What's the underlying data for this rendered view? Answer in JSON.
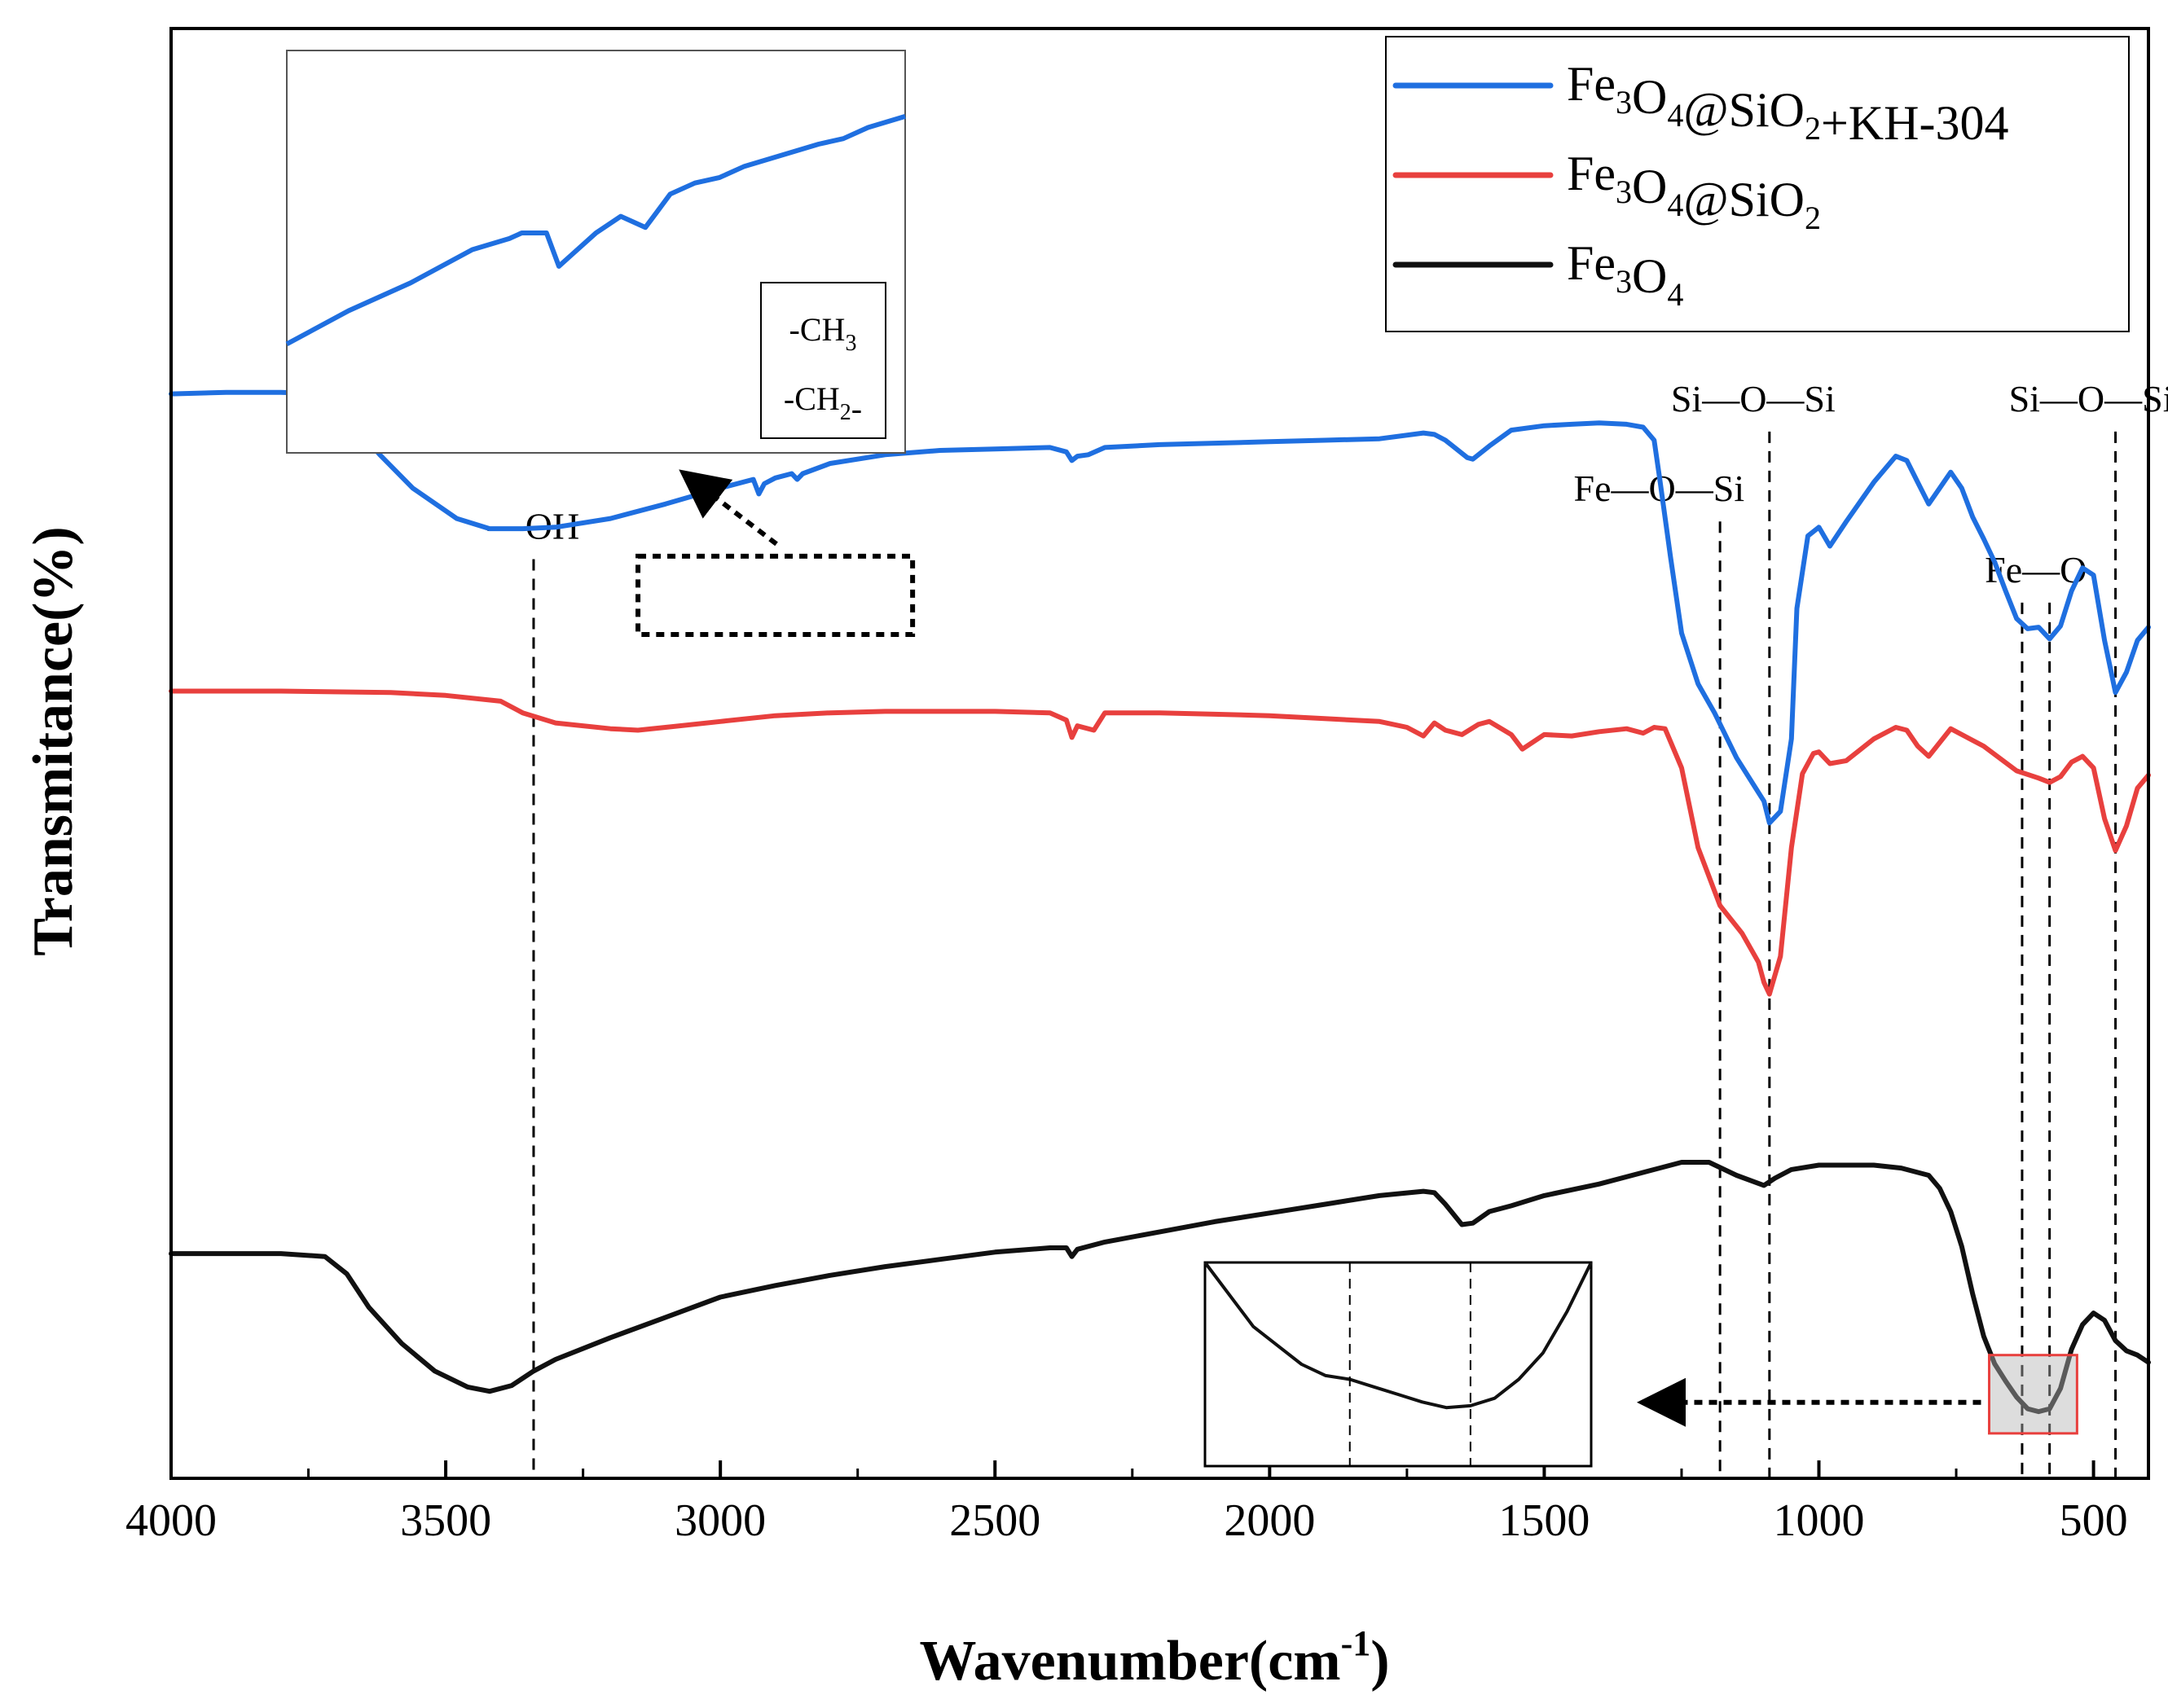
{
  "chart_data": {
    "type": "line",
    "xlabel": "Wavenumber(cm",
    "xlabel_sup": "-1",
    "xlabel_close": ")",
    "ylabel": "Transmitance(%)",
    "xlim": [
      4000,
      400
    ],
    "ylim": [
      0,
      100
    ],
    "x_ticks": [
      4000,
      3500,
      3000,
      2500,
      2000,
      1500,
      1000,
      500
    ],
    "x_tick_labels": [
      "4000",
      "3500",
      "3000",
      "2500",
      "2000",
      "1500",
      "1000",
      "500"
    ],
    "y_ticks_shown": false,
    "legend_position": "top-right",
    "series": [
      {
        "name": "Fe3O4@SiO2+KH-304",
        "legend": [
          [
            "Fe",
            ""
          ],
          [
            "3",
            "sub"
          ],
          [
            "O",
            ""
          ],
          [
            "4",
            "sub"
          ],
          [
            "@SiO",
            ""
          ],
          [
            "2",
            "sub"
          ],
          [
            "+KH-304",
            ""
          ]
        ],
        "color": "#1f6fe0",
        "x": [
          4000,
          3900,
          3800,
          3720,
          3680,
          3620,
          3560,
          3480,
          3420,
          3360,
          3300,
          3200,
          3100,
          3000,
          2940,
          2930,
          2920,
          2900,
          2870,
          2860,
          2850,
          2800,
          2700,
          2600,
          2500,
          2400,
          2370,
          2360,
          2350,
          2330,
          2300,
          2200,
          2100,
          2000,
          1900,
          1800,
          1720,
          1700,
          1680,
          1640,
          1630,
          1600,
          1560,
          1500,
          1450,
          1400,
          1350,
          1320,
          1300,
          1290,
          1270,
          1250,
          1220,
          1190,
          1150,
          1120,
          1100,
          1090,
          1070,
          1050,
          1040,
          1020,
          1000,
          980,
          950,
          900,
          860,
          840,
          820,
          800,
          780,
          760,
          740,
          720,
          700,
          680,
          660,
          640,
          620,
          600,
          580,
          560,
          540,
          520,
          500,
          480,
          460,
          440,
          420,
          400
        ],
        "y": [
          74.8,
          74.9,
          74.9,
          74.8,
          73.2,
          70.6,
          68.3,
          66.2,
          65.5,
          65.5,
          65.6,
          66.2,
          67.2,
          68.3,
          68.9,
          67.9,
          68.6,
          69.0,
          69.3,
          68.9,
          69.3,
          70.0,
          70.6,
          70.9,
          71.0,
          71.1,
          70.8,
          70.2,
          70.5,
          70.6,
          71.1,
          71.3,
          71.4,
          71.5,
          71.6,
          71.7,
          72.1,
          72.0,
          71.6,
          70.4,
          70.3,
          71.2,
          72.3,
          72.6,
          72.7,
          72.8,
          72.7,
          72.5,
          71.6,
          69.0,
          63.5,
          58.3,
          54.8,
          52.8,
          49.7,
          47.9,
          46.7,
          45.2,
          46.0,
          51.0,
          60.0,
          65.0,
          65.6,
          64.3,
          66.0,
          68.7,
          70.5,
          70.2,
          68.7,
          67.2,
          68.3,
          69.4,
          68.3,
          66.3,
          64.8,
          63.2,
          61.2,
          59.3,
          58.6,
          58.7,
          57.9,
          58.8,
          61.2,
          62.8,
          62.3,
          57.8,
          54.2,
          55.6,
          57.8,
          58.7
        ]
      },
      {
        "name": "Fe3O4@SiO2",
        "legend": [
          [
            "Fe",
            ""
          ],
          [
            "3",
            "sub"
          ],
          [
            "O",
            ""
          ],
          [
            "4",
            "sub"
          ],
          [
            "@SiO",
            ""
          ],
          [
            "2",
            "sub"
          ]
        ],
        "color": "#e8403e",
        "x": [
          4000,
          3800,
          3600,
          3500,
          3400,
          3360,
          3300,
          3200,
          3150,
          3100,
          3000,
          2900,
          2800,
          2700,
          2600,
          2500,
          2400,
          2370,
          2360,
          2350,
          2320,
          2300,
          2200,
          2100,
          2000,
          1900,
          1800,
          1750,
          1720,
          1700,
          1680,
          1650,
          1620,
          1600,
          1560,
          1540,
          1500,
          1450,
          1400,
          1350,
          1320,
          1300,
          1280,
          1250,
          1220,
          1180,
          1140,
          1110,
          1100,
          1090,
          1070,
          1050,
          1030,
          1010,
          1000,
          980,
          950,
          900,
          860,
          840,
          820,
          800,
          760,
          700,
          640,
          600,
          580,
          560,
          540,
          520,
          500,
          480,
          460,
          440,
          420,
          400
        ],
        "y": [
          54.3,
          54.3,
          54.2,
          54.0,
          53.6,
          52.8,
          52.1,
          51.7,
          51.6,
          51.8,
          52.2,
          52.6,
          52.8,
          52.9,
          52.9,
          52.9,
          52.8,
          52.3,
          51.1,
          51.9,
          51.6,
          52.8,
          52.8,
          52.7,
          52.6,
          52.4,
          52.2,
          51.8,
          51.2,
          52.1,
          51.6,
          51.3,
          52.0,
          52.2,
          51.3,
          50.3,
          51.3,
          51.2,
          51.5,
          51.7,
          51.4,
          51.8,
          51.7,
          49.0,
          43.5,
          39.5,
          37.6,
          35.6,
          34.2,
          33.4,
          36.0,
          43.5,
          48.6,
          50.0,
          50.1,
          49.3,
          49.5,
          51.0,
          51.8,
          51.6,
          50.5,
          49.8,
          51.7,
          50.5,
          48.8,
          48.3,
          48.0,
          48.4,
          49.4,
          49.8,
          49.0,
          45.5,
          43.3,
          45.0,
          47.6,
          48.5
        ]
      },
      {
        "name": "Fe3O4",
        "legend": [
          [
            "Fe",
            ""
          ],
          [
            "3",
            "sub"
          ],
          [
            "O",
            ""
          ],
          [
            "4",
            "sub"
          ]
        ],
        "color": "#111111",
        "x": [
          4000,
          3900,
          3800,
          3720,
          3680,
          3640,
          3580,
          3520,
          3460,
          3420,
          3380,
          3340,
          3300,
          3200,
          3100,
          3000,
          2900,
          2800,
          2700,
          2600,
          2500,
          2400,
          2370,
          2360,
          2350,
          2300,
          2200,
          2100,
          2000,
          1900,
          1800,
          1720,
          1700,
          1680,
          1650,
          1630,
          1600,
          1560,
          1500,
          1400,
          1300,
          1250,
          1200,
          1150,
          1100,
          1080,
          1050,
          1000,
          950,
          900,
          850,
          800,
          780,
          760,
          740,
          720,
          700,
          680,
          660,
          640,
          620,
          600,
          580,
          560,
          540,
          520,
          500,
          480,
          460,
          440,
          420,
          400
        ],
        "y": [
          15.5,
          15.5,
          15.5,
          15.3,
          14.1,
          11.8,
          9.3,
          7.4,
          6.3,
          6.0,
          6.4,
          7.4,
          8.2,
          9.7,
          11.1,
          12.5,
          13.3,
          14.0,
          14.6,
          15.1,
          15.6,
          15.9,
          15.9,
          15.3,
          15.8,
          16.3,
          17.0,
          17.7,
          18.3,
          18.9,
          19.5,
          19.8,
          19.7,
          18.9,
          17.5,
          17.6,
          18.4,
          18.8,
          19.5,
          20.3,
          21.3,
          21.8,
          21.8,
          20.9,
          20.2,
          20.7,
          21.3,
          21.6,
          21.6,
          21.6,
          21.4,
          20.9,
          20.0,
          18.4,
          16.0,
          12.7,
          9.8,
          7.9,
          6.7,
          5.6,
          4.8,
          4.6,
          4.8,
          6.2,
          8.9,
          10.6,
          11.4,
          10.9,
          9.5,
          8.8,
          8.5,
          8.0
        ]
      }
    ],
    "annotations": [
      {
        "text": "—OH",
        "x": 3340,
        "line_top": 63.4
      },
      {
        "text": "Fe—O—Si",
        "x": 1180,
        "line_top": 66.0
      },
      {
        "text": "Si—O—Si",
        "x": 1090,
        "line_top": 72.2
      },
      {
        "text": "Fe—O",
        "x": 630,
        "line_top": 60.4
      },
      {
        "text": "Fe—O",
        "x": 580,
        "line_top": 60.4
      },
      {
        "text": "Si—O—Si",
        "x": 460,
        "line_top": 72.2
      }
    ],
    "inset_top": {
      "source_x": [
        3150,
        2650
      ],
      "source_y": [
        58.2,
        63.6
      ],
      "x": [
        3150,
        3100,
        3050,
        3000,
        2970,
        2960,
        2950,
        2940,
        2930,
        2920,
        2900,
        2880,
        2870,
        2860,
        2850,
        2840,
        2820,
        2800,
        2780,
        2750,
        2720,
        2700,
        2680,
        2650
      ],
      "y": [
        66.6,
        67.2,
        67.7,
        68.3,
        68.5,
        68.6,
        68.6,
        68.6,
        68.0,
        68.2,
        68.6,
        68.9,
        68.8,
        68.7,
        69.0,
        69.3,
        69.5,
        69.6,
        69.8,
        70.0,
        70.2,
        70.3,
        70.5,
        70.7
      ],
      "y_range": [
        66.4,
        71.3
      ],
      "labels": [
        [
          [
            "-CH",
            ""
          ],
          [
            "3",
            "sub"
          ]
        ],
        [
          [
            "-CH",
            ""
          ],
          [
            "2",
            "sub"
          ],
          [
            "-",
            ""
          ]
        ]
      ]
    },
    "inset_bottom": {
      "source_x": [
        690,
        530
      ],
      "source_y": [
        3.1,
        8.5
      ],
      "x": [
        690,
        670,
        650,
        640,
        630,
        620,
        610,
        600,
        590,
        580,
        570,
        560,
        550,
        540,
        530
      ],
      "y": [
        8.5,
        6.8,
        5.8,
        5.5,
        5.4,
        5.2,
        5.0,
        4.8,
        4.65,
        4.7,
        4.9,
        5.4,
        6.1,
        7.2,
        8.5
      ],
      "y_range": [
        3.1,
        8.5
      ],
      "dashed_x": [
        630,
        580
      ]
    }
  }
}
